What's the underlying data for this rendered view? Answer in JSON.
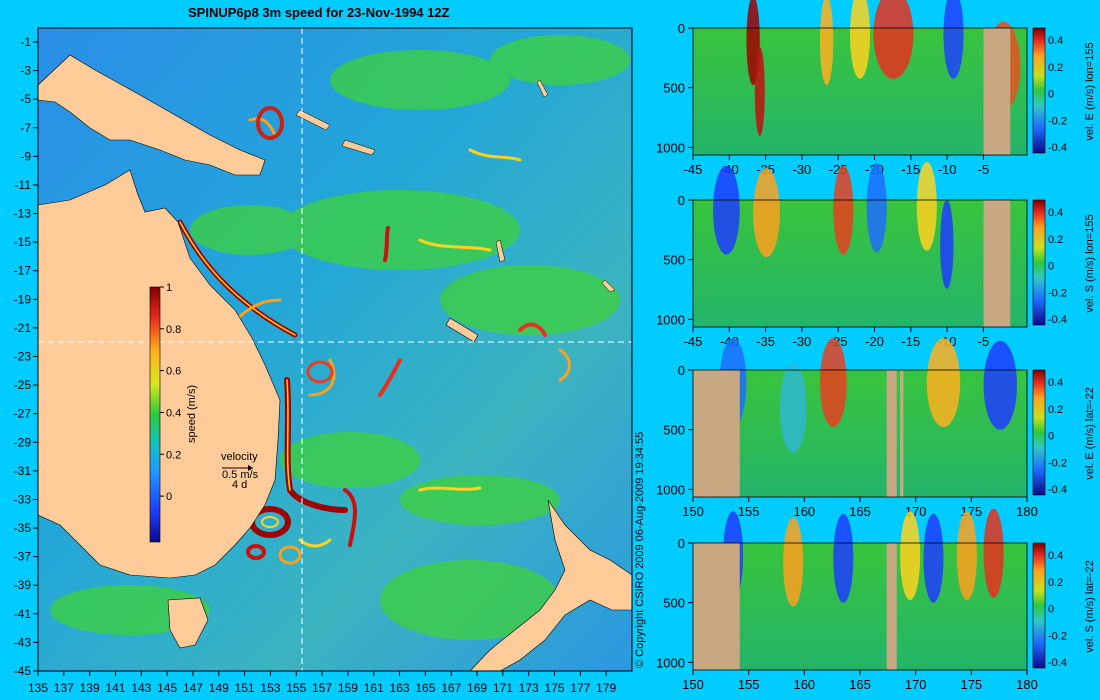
{
  "title": "SPINUP6p8 3m speed for 23-Nov-1994 12Z",
  "copyright": "© Copyright CSIRO 2009   06-Aug-2009 19:34:55",
  "colors": {
    "background": "#00ccff",
    "land": "#ffcc99",
    "section_land": "#c8a882"
  },
  "map": {
    "lon_ticks": [
      "135",
      "137",
      "139",
      "141",
      "143",
      "145",
      "147",
      "149",
      "151",
      "153",
      "155",
      "157",
      "159",
      "161",
      "163",
      "165",
      "167",
      "169",
      "171",
      "173",
      "175",
      "177",
      "179"
    ],
    "lat_ticks": [
      "-1",
      "-3",
      "-5",
      "-7",
      "-9",
      "-11",
      "-13",
      "-15",
      "-17",
      "-19",
      "-21",
      "-23",
      "-25",
      "-27",
      "-29",
      "-31",
      "-33",
      "-35",
      "-37",
      "-39",
      "-41",
      "-43",
      "-45"
    ],
    "colorbar_label": "speed (m/s)",
    "colorbar_ticks": [
      "1",
      "0.8",
      "0.6",
      "0.4",
      "0.2",
      "0"
    ],
    "velocity_key": {
      "title": "velocity",
      "speed": "0.5 m/s",
      "days": "4 d"
    }
  },
  "sections": [
    {
      "label": "vel. E (m/s) lon=155",
      "x_ticks": [
        "-45",
        "-40",
        "-35",
        "-30",
        "-25",
        "-20",
        "-15",
        "-10",
        "-5"
      ]
    },
    {
      "label": "vel. S (m/s) lon=155",
      "x_ticks": [
        "-45",
        "-40",
        "-35",
        "-30",
        "-25",
        "-20",
        "-15",
        "-10",
        "-5"
      ]
    },
    {
      "label": "vel. E (m/s) lat=-22",
      "x_ticks": [
        "150",
        "155",
        "160",
        "165",
        "170",
        "175",
        "180"
      ]
    },
    {
      "label": "vel. S (m/s) lat=-22",
      "x_ticks": [
        "150",
        "155",
        "160",
        "165",
        "170",
        "175",
        "180"
      ]
    }
  ],
  "section_y_ticks": [
    "0",
    "500",
    "1000"
  ],
  "section_cbar_ticks": [
    "0.4",
    "0.2",
    "0",
    "-0.2",
    "-0.4"
  ]
}
